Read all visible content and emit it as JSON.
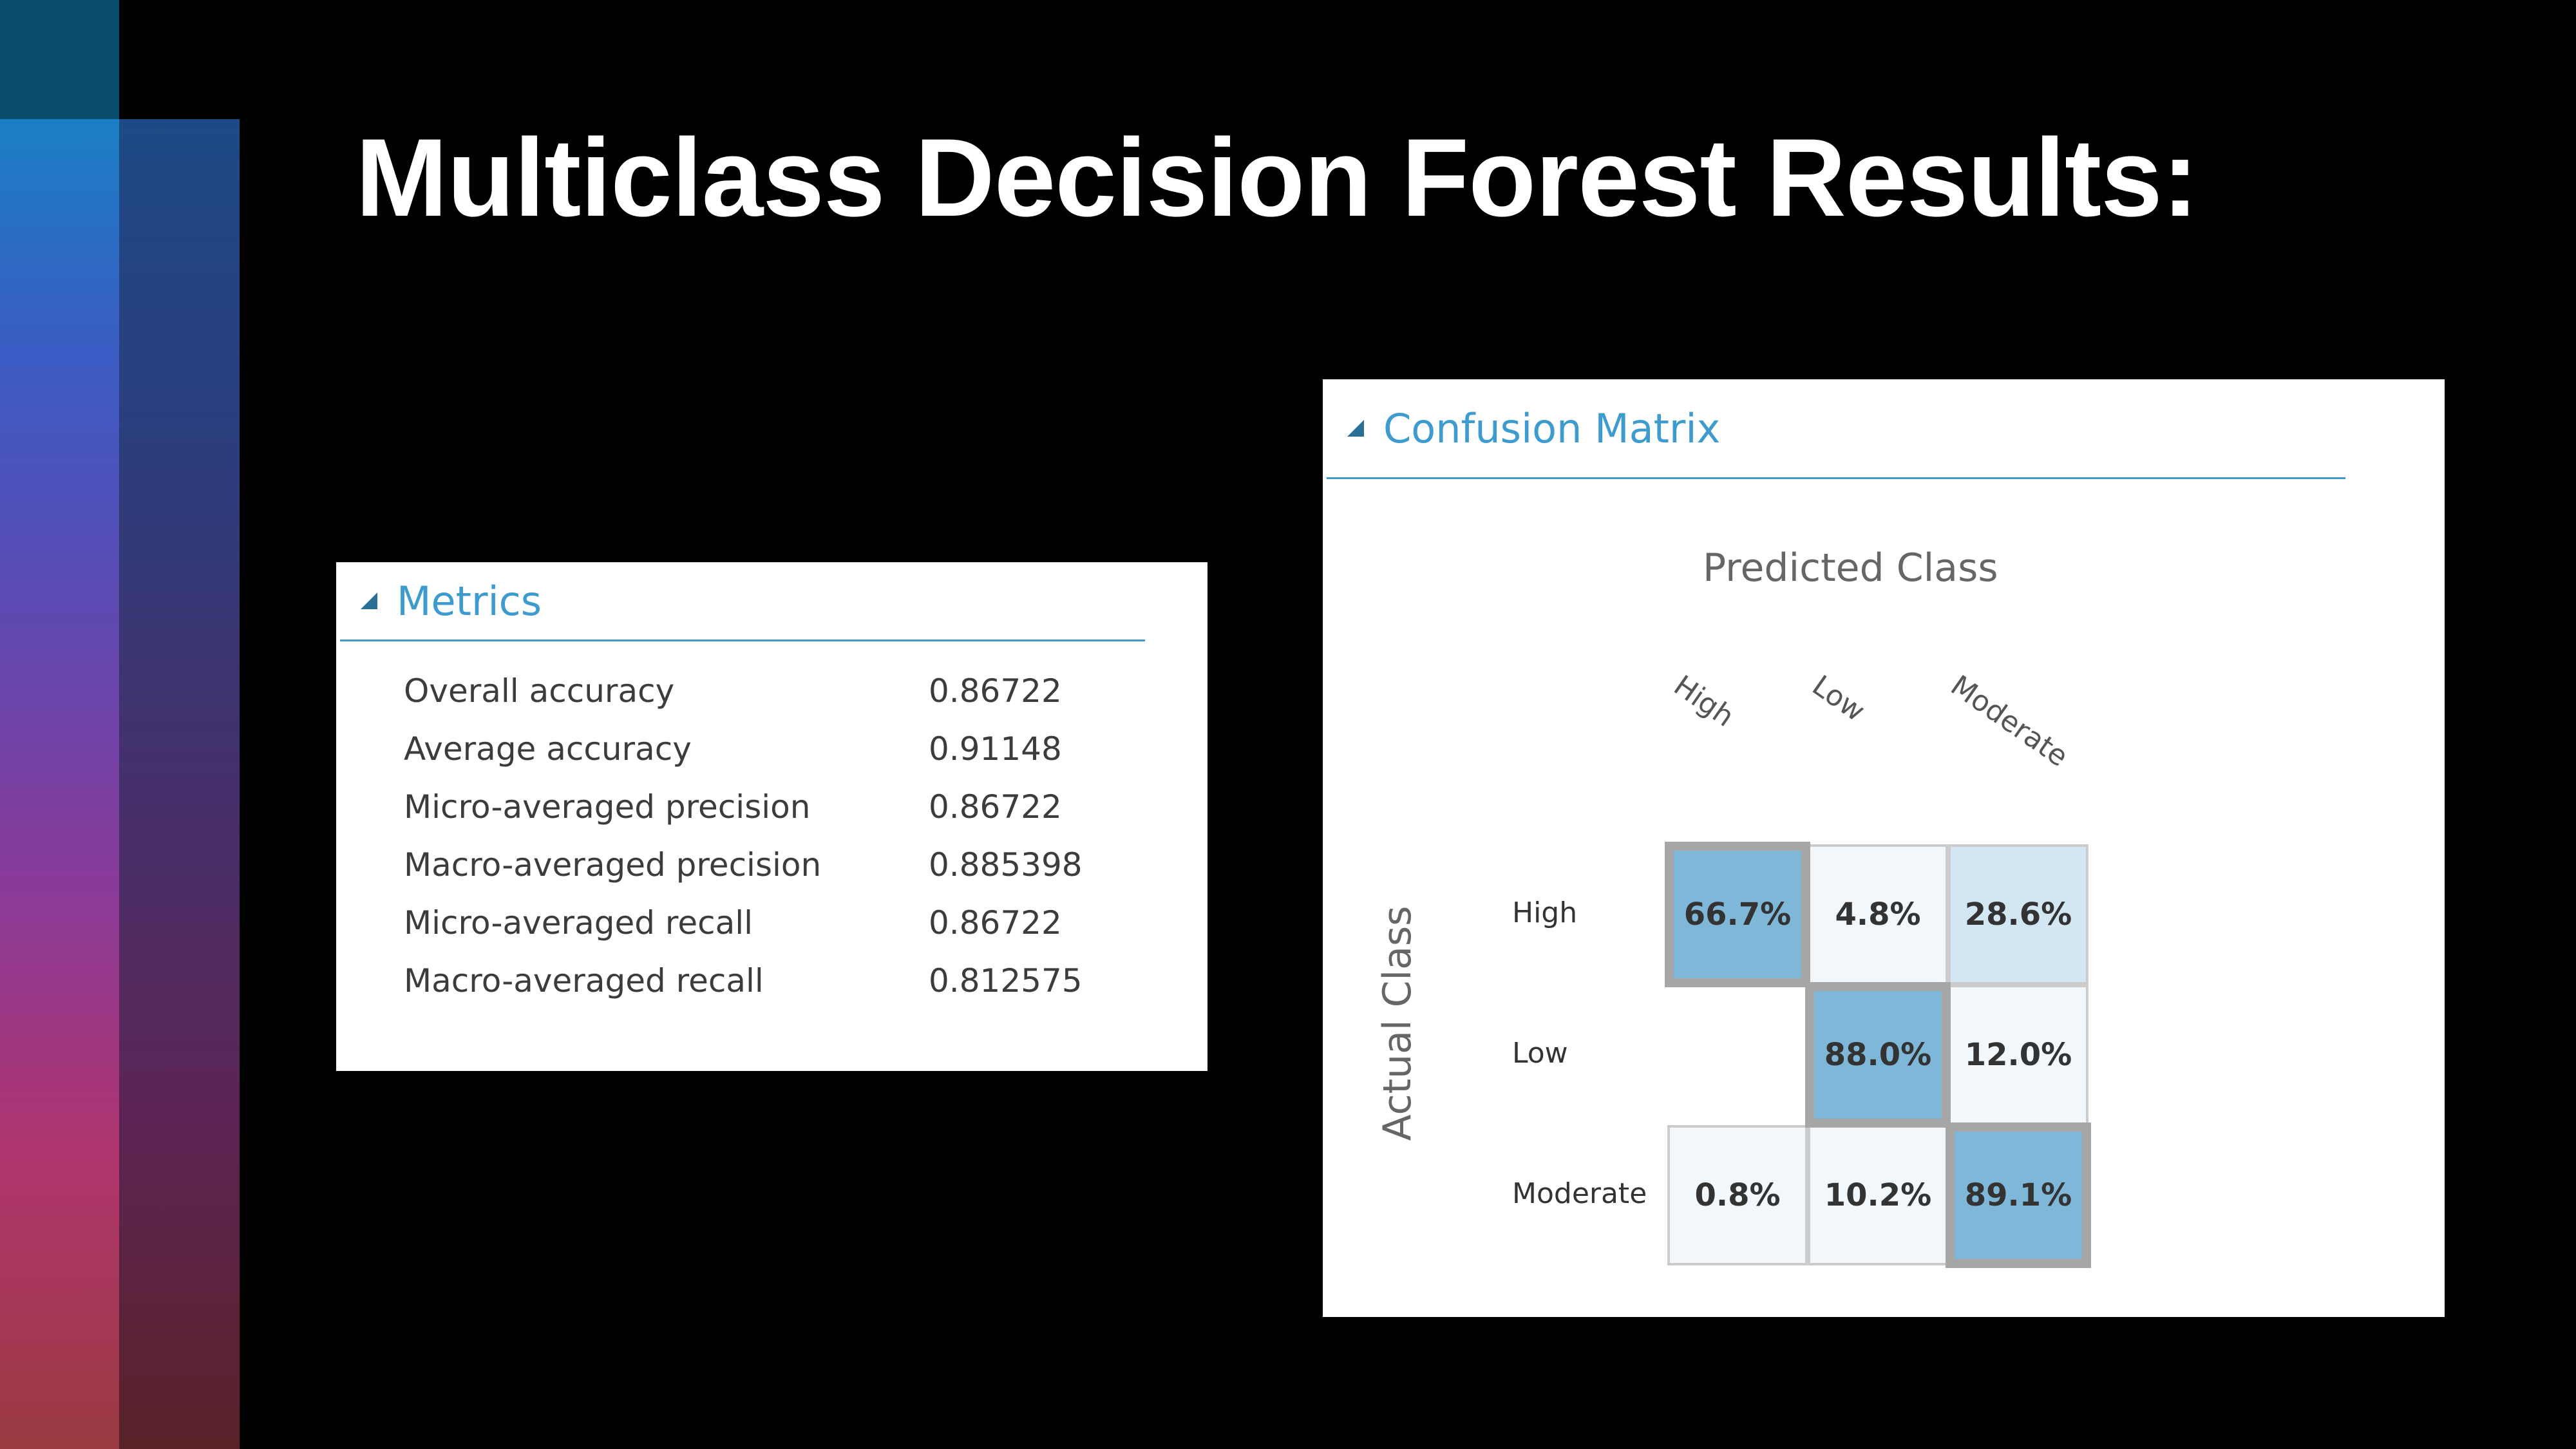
{
  "slide": {
    "title": "Multiclass Decision Forest Results:"
  },
  "metrics": {
    "title": "Metrics",
    "rows": [
      {
        "label": "Overall accuracy",
        "value": "0.86722"
      },
      {
        "label": "Average accuracy",
        "value": "0.91148"
      },
      {
        "label": "Micro-averaged precision",
        "value": "0.86722"
      },
      {
        "label": "Macro-averaged precision",
        "value": "0.885398"
      },
      {
        "label": "Micro-averaged recall",
        "value": "0.86722"
      },
      {
        "label": "Macro-averaged recall",
        "value": "0.812575"
      }
    ]
  },
  "confusion": {
    "title": "Confusion Matrix",
    "predicted_label": "Predicted Class",
    "actual_label": "Actual Class",
    "classes": [
      "High",
      "Low",
      "Moderate"
    ],
    "colors": {
      "high": "#7fb7d9",
      "mid": "#d3e7f3",
      "low": "#f1f7fb",
      "none": "#ffffff",
      "diag_border": "#a6a6a6",
      "border": "#cccccc"
    },
    "matrix": [
      [
        {
          "label": "66.7%",
          "value": 66.7
        },
        {
          "label": "4.8%",
          "value": 4.8
        },
        {
          "label": "28.6%",
          "value": 28.6
        }
      ],
      [
        {
          "label": "",
          "value": 0
        },
        {
          "label": "88.0%",
          "value": 88.0
        },
        {
          "label": "12.0%",
          "value": 12.0
        }
      ],
      [
        {
          "label": "0.8%",
          "value": 0.8
        },
        {
          "label": "10.2%",
          "value": 10.2
        },
        {
          "label": "89.1%",
          "value": 89.1
        }
      ]
    ]
  }
}
